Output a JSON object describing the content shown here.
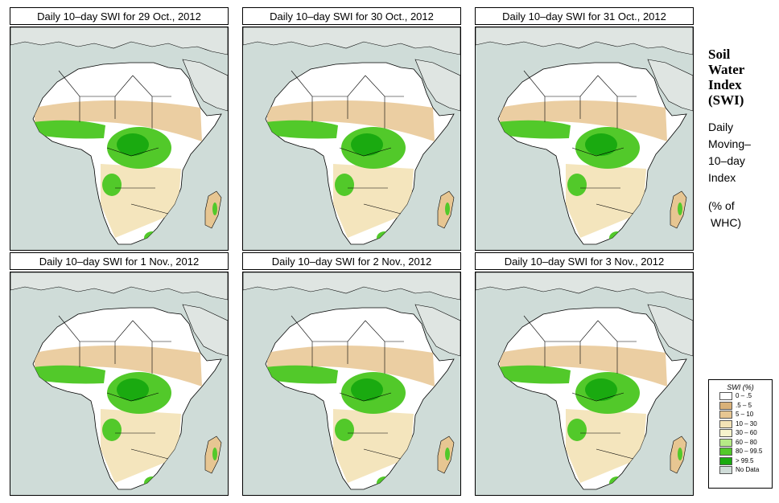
{
  "panels": [
    {
      "title": "Daily 10–day SWI for  29 Oct., 2012"
    },
    {
      "title": "Daily 10–day SWI for  30 Oct., 2012"
    },
    {
      "title": "Daily 10–day SWI for  31 Oct., 2012"
    },
    {
      "title": "Daily 10–day SWI for  1 Nov., 2012"
    },
    {
      "title": "Daily 10–day SWI for  2 Nov., 2012"
    },
    {
      "title": "Daily 10–day SWI for  3 Nov., 2012"
    }
  ],
  "side": {
    "title_lines": [
      "Soil",
      "Water",
      "Index",
      "(SWI)"
    ],
    "desc_lines": [
      "Daily",
      "Moving–",
      "10–day",
      "Index"
    ],
    "unit_lines": [
      "(% of",
      "WHC)"
    ]
  },
  "legend": {
    "title": "SWI (%)",
    "items": [
      {
        "label": "0 – .5",
        "color": "#ffffff"
      },
      {
        "label": ".5 – 5",
        "color": "#d9b178"
      },
      {
        "label": "5 – 10",
        "color": "#e7c692"
      },
      {
        "label": "10 – 30",
        "color": "#f3e2b6"
      },
      {
        "label": "30 – 60",
        "color": "#f6f3cc"
      },
      {
        "label": "60 – 80",
        "color": "#b6ea86"
      },
      {
        "label": "80 – 99.5",
        "color": "#52c92a"
      },
      {
        "label": "> 99.5",
        "color": "#1aaa10"
      },
      {
        "label": "No Data",
        "color": "#cfdcd8"
      }
    ]
  },
  "colors": {
    "ocean": "#cfdcd8",
    "land_dry": "#ffffff",
    "tan": "#e7c692",
    "green": "#52c92a",
    "dark_green": "#1aaa10"
  }
}
